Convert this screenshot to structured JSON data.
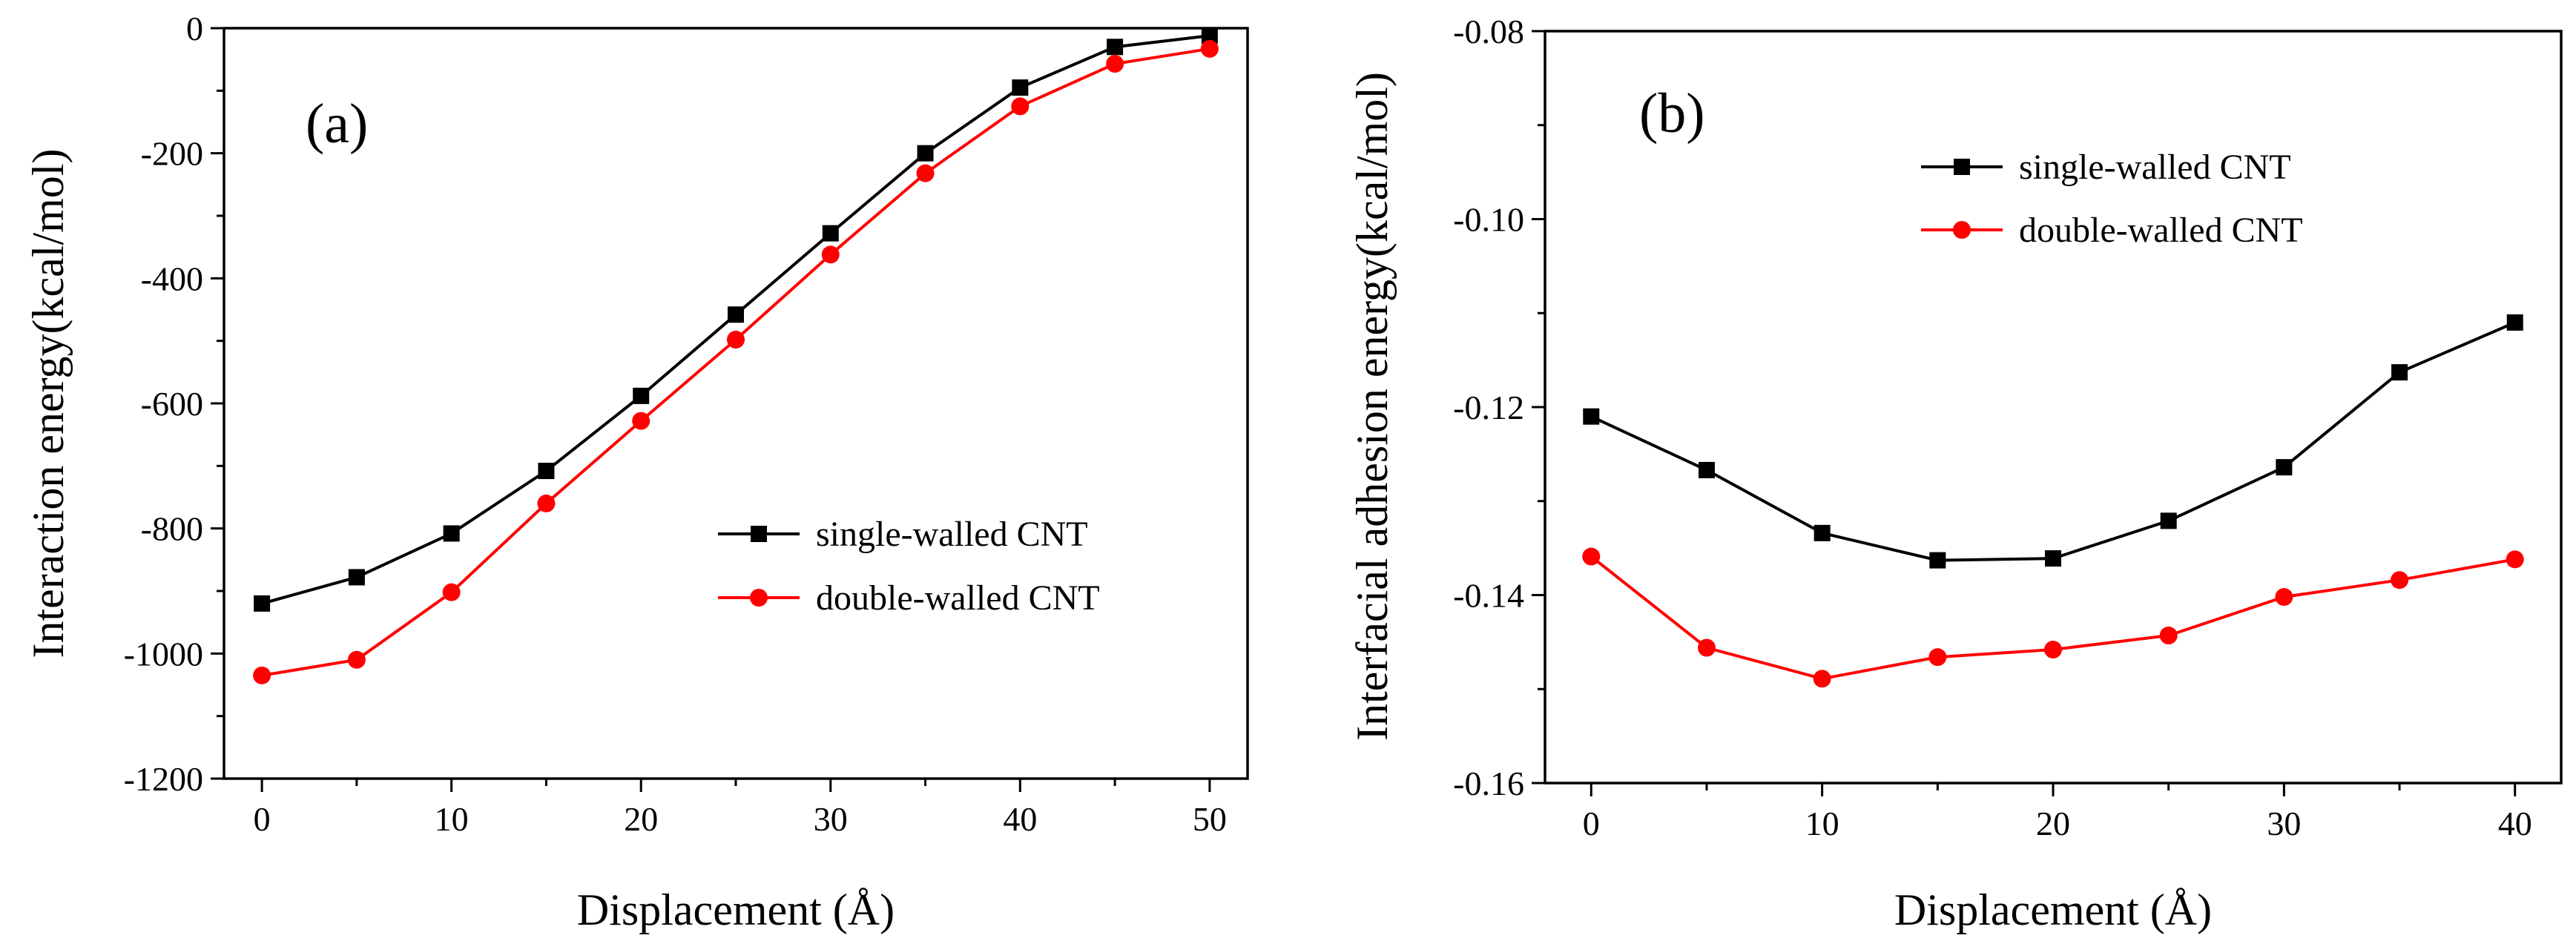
{
  "chart_data": [
    {
      "type": "line",
      "panel_label": "(a)",
      "title": "",
      "xlabel": "Displacement (Å)",
      "ylabel": "Interaction energy(kcal/mol)",
      "xlim": [
        -2,
        52
      ],
      "ylim": [
        -1200,
        0
      ],
      "xticks": [
        0,
        10,
        20,
        30,
        40,
        50
      ],
      "yticks": [
        0,
        -200,
        -400,
        -600,
        -800,
        -1000,
        -1200
      ],
      "x": [
        0,
        5,
        10,
        15,
        20,
        25,
        30,
        35,
        40,
        45,
        50
      ],
      "grid": false,
      "legend_position": "center-right",
      "series": [
        {
          "name": "single-walled CNT",
          "color": "#000000",
          "marker": "square",
          "values": [
            -920,
            -878,
            -808,
            -708,
            -588,
            -458,
            -328,
            -200,
            -95,
            -30,
            -12
          ]
        },
        {
          "name": "double-walled CNT",
          "color": "#ff0000",
          "marker": "circle",
          "values": [
            -1035,
            -1010,
            -902,
            -760,
            -628,
            -498,
            -362,
            -232,
            -125,
            -57,
            -33
          ]
        }
      ]
    },
    {
      "type": "line",
      "panel_label": "(b)",
      "title": "",
      "xlabel": "Displacement (Å)",
      "ylabel": "Interfacial adhesion energy(kcal/mol)",
      "xlim": [
        -2,
        42
      ],
      "ylim": [
        -0.16,
        -0.08
      ],
      "xticks": [
        0,
        10,
        20,
        30,
        40
      ],
      "yticks": [
        -0.08,
        -0.1,
        -0.12,
        -0.14,
        -0.16
      ],
      "x": [
        0,
        5,
        10,
        15,
        20,
        25,
        30,
        35,
        40
      ],
      "grid": false,
      "legend_position": "top-right",
      "series": [
        {
          "name": "single-walled CNT",
          "color": "#000000",
          "marker": "square",
          "values": [
            -0.121,
            -0.1267,
            -0.1334,
            -0.1363,
            -0.1361,
            -0.1321,
            -0.1264,
            -0.1163,
            -0.111
          ]
        },
        {
          "name": "double-walled CNT",
          "color": "#ff0000",
          "marker": "circle",
          "values": [
            -0.1359,
            -0.1456,
            -0.1489,
            -0.1466,
            -0.1458,
            -0.1443,
            -0.1402,
            -0.1384,
            -0.1362
          ]
        }
      ]
    }
  ]
}
